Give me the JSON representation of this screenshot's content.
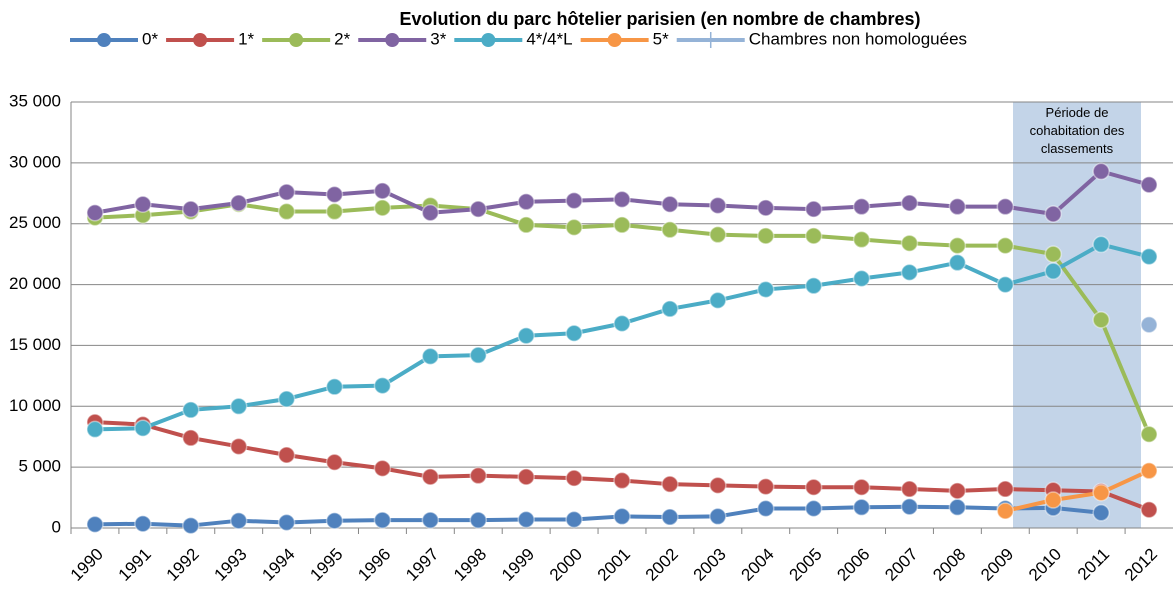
{
  "chart_data": {
    "type": "line",
    "title": "Evolution du parc hôtelier parisien (en nombre de chambres)",
    "annotation": "Période de cohabitation des classements",
    "categories": [
      "1990",
      "1991",
      "1992",
      "1993",
      "1994",
      "1995",
      "1996",
      "1997",
      "1998",
      "1999",
      "2000",
      "2001",
      "2002",
      "2003",
      "2004",
      "2005",
      "2006",
      "2007",
      "2008",
      "2009",
      "2010",
      "2011",
      "2012"
    ],
    "series": [
      {
        "name": "0*",
        "color": "#4f81bd",
        "values": [
          300,
          350,
          200,
          600,
          450,
          600,
          650,
          650,
          650,
          700,
          700,
          950,
          900,
          950,
          1600,
          1600,
          1700,
          1750,
          1700,
          1600,
          1650,
          1250,
          null
        ]
      },
      {
        "name": "1*",
        "color": "#c0504d",
        "values": [
          8700,
          8500,
          7400,
          6700,
          6000,
          5400,
          4900,
          4200,
          4300,
          4200,
          4100,
          3900,
          3600,
          3500,
          3400,
          3350,
          3350,
          3200,
          3050,
          3200,
          3100,
          3000,
          1500
        ]
      },
      {
        "name": "2*",
        "color": "#9bbb59",
        "values": [
          25500,
          25700,
          26000,
          26600,
          26000,
          26000,
          26300,
          26500,
          26200,
          24900,
          24700,
          24900,
          24500,
          24100,
          24000,
          24000,
          23700,
          23400,
          23200,
          23200,
          22500,
          17100,
          7700
        ]
      },
      {
        "name": "3*",
        "color": "#8064a2",
        "values": [
          25900,
          26600,
          26200,
          26700,
          27600,
          27400,
          27700,
          25900,
          26200,
          26800,
          26900,
          27000,
          26600,
          26500,
          26300,
          26200,
          26400,
          26700,
          26400,
          26400,
          25800,
          29300,
          28200
        ]
      },
      {
        "name": "4*/4*L",
        "color": "#4bacc6",
        "values": [
          8100,
          8200,
          9700,
          10000,
          10600,
          11600,
          11700,
          14100,
          14200,
          15800,
          16000,
          16800,
          18000,
          18700,
          19600,
          19900,
          20500,
          21000,
          21800,
          20000,
          21100,
          23300,
          22300
        ]
      },
      {
        "name": "5*",
        "color": "#f79646",
        "values": [
          null,
          null,
          null,
          null,
          null,
          null,
          null,
          null,
          null,
          null,
          null,
          null,
          null,
          null,
          null,
          null,
          null,
          null,
          null,
          1400,
          2300,
          2900,
          4700
        ]
      },
      {
        "name": "Chambres non homologuées",
        "color": "#95b3d7",
        "values": [
          null,
          null,
          null,
          null,
          null,
          null,
          null,
          null,
          null,
          null,
          null,
          null,
          null,
          null,
          null,
          null,
          null,
          null,
          null,
          null,
          null,
          null,
          16700
        ]
      }
    ],
    "ylim": [
      0,
      35000
    ],
    "yticks": [
      0,
      {
        "value": 5000,
        "label": "5 000"
      },
      {
        "value": 10000,
        "label": "10 000"
      },
      {
        "value": 15000,
        "label": "15 000"
      },
      {
        "value": 20000,
        "label": "20 000"
      },
      {
        "value": 25000,
        "label": "25 000"
      },
      {
        "value": 30000,
        "label": "30 000"
      },
      {
        "value": 35000,
        "label": "35 000"
      }
    ],
    "grid": true,
    "legend": "top"
  }
}
